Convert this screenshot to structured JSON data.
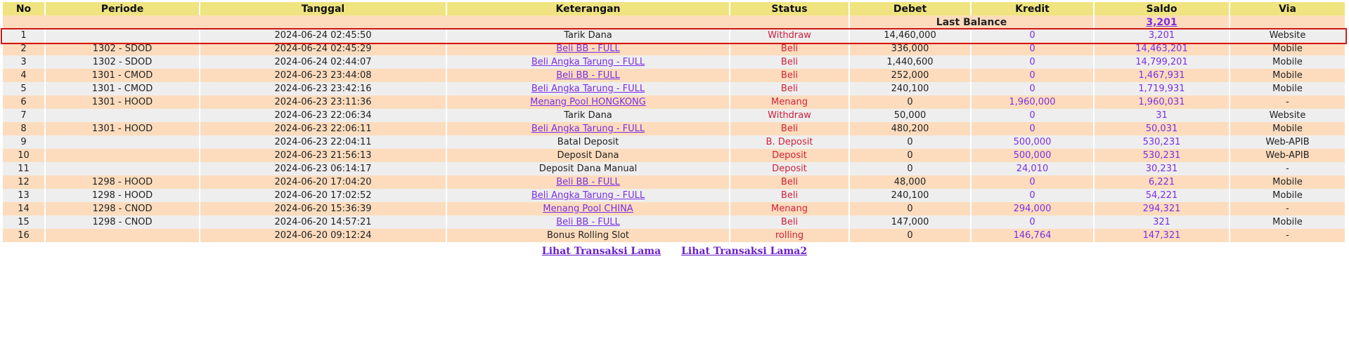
{
  "headers": [
    "No",
    "Periode",
    "Tanggal",
    "Keterangan",
    "Status",
    "Debet",
    "Kredit",
    "Saldo",
    "Via"
  ],
  "last_balance": {
    "label": "Last Balance",
    "value": "3,201"
  },
  "rows": [
    {
      "no": "1",
      "periode": "",
      "tanggal": "2024-06-24 02:45:50",
      "keterangan": "Tarik Dana",
      "link": false,
      "status": "Withdraw",
      "debet": "14,460,000",
      "kredit": "0",
      "saldo": "3,201",
      "via": "Website"
    },
    {
      "no": "2",
      "periode": "1302 - SDOD",
      "tanggal": "2024-06-24 02:45:29",
      "keterangan": "Beli BB - FULL",
      "link": true,
      "status": "Beli",
      "debet": "336,000",
      "kredit": "0",
      "saldo": "14,463,201",
      "via": "Mobile"
    },
    {
      "no": "3",
      "periode": "1302 - SDOD",
      "tanggal": "2024-06-24 02:44:07",
      "keterangan": "Beli Angka Tarung - FULL",
      "link": true,
      "status": "Beli",
      "debet": "1,440,600",
      "kredit": "0",
      "saldo": "14,799,201",
      "via": "Mobile"
    },
    {
      "no": "4",
      "periode": "1301 - CMOD",
      "tanggal": "2024-06-23 23:44:08",
      "keterangan": "Beli BB - FULL",
      "link": true,
      "status": "Beli",
      "debet": "252,000",
      "kredit": "0",
      "saldo": "1,467,931",
      "via": "Mobile"
    },
    {
      "no": "5",
      "periode": "1301 - CMOD",
      "tanggal": "2024-06-23 23:42:16",
      "keterangan": "Beli Angka Tarung - FULL",
      "link": true,
      "status": "Beli",
      "debet": "240,100",
      "kredit": "0",
      "saldo": "1,719,931",
      "via": "Mobile"
    },
    {
      "no": "6",
      "periode": "1301 - HOOD",
      "tanggal": "2024-06-23 23:11:36",
      "keterangan": "Menang Pool HONGKONG",
      "link": true,
      "status": "Menang",
      "debet": "0",
      "kredit": "1,960,000",
      "saldo": "1,960,031",
      "via": "-"
    },
    {
      "no": "7",
      "periode": "",
      "tanggal": "2024-06-23 22:06:34",
      "keterangan": "Tarik Dana",
      "link": false,
      "status": "Withdraw",
      "debet": "50,000",
      "kredit": "0",
      "saldo": "31",
      "via": "Website"
    },
    {
      "no": "8",
      "periode": "1301 - HOOD",
      "tanggal": "2024-06-23 22:06:11",
      "keterangan": "Beli Angka Tarung - FULL",
      "link": true,
      "status": "Beli",
      "debet": "480,200",
      "kredit": "0",
      "saldo": "50,031",
      "via": "Mobile"
    },
    {
      "no": "9",
      "periode": "",
      "tanggal": "2024-06-23 22:04:11",
      "keterangan": "Batal Deposit",
      "link": false,
      "status": "B. Deposit",
      "debet": "0",
      "kredit": "500,000",
      "saldo": "530,231",
      "via": "Web-APIB"
    },
    {
      "no": "10",
      "periode": "",
      "tanggal": "2024-06-23 21:56:13",
      "keterangan": "Deposit Dana",
      "link": false,
      "status": "Deposit",
      "debet": "0",
      "kredit": "500,000",
      "saldo": "530,231",
      "via": "Web-APIB"
    },
    {
      "no": "11",
      "periode": "",
      "tanggal": "2024-06-23 06:14:17",
      "keterangan": "Deposit Dana Manual",
      "link": false,
      "status": "Deposit",
      "debet": "0",
      "kredit": "24,010",
      "saldo": "30,231",
      "via": "-"
    },
    {
      "no": "12",
      "periode": "1298 - HOOD",
      "tanggal": "2024-06-20 17:04:20",
      "keterangan": "Beli BB - FULL",
      "link": true,
      "status": "Beli",
      "debet": "48,000",
      "kredit": "0",
      "saldo": "6,221",
      "via": "Mobile"
    },
    {
      "no": "13",
      "periode": "1298 - HOOD",
      "tanggal": "2024-06-20 17:02:52",
      "keterangan": "Beli Angka Tarung - FULL",
      "link": true,
      "status": "Beli",
      "debet": "240,100",
      "kredit": "0",
      "saldo": "54,221",
      "via": "Mobile"
    },
    {
      "no": "14",
      "periode": "1298 - CNOD",
      "tanggal": "2024-06-20 15:36:39",
      "keterangan": "Menang Pool CHINA",
      "link": true,
      "status": "Menang",
      "debet": "0",
      "kredit": "294,000",
      "saldo": "294,321",
      "via": "-"
    },
    {
      "no": "15",
      "periode": "1298 - CNOD",
      "tanggal": "2024-06-20 14:57:21",
      "keterangan": "Beli BB - FULL",
      "link": true,
      "status": "Beli",
      "debet": "147,000",
      "kredit": "0",
      "saldo": "321",
      "via": "Mobile"
    },
    {
      "no": "16",
      "periode": "",
      "tanggal": "2024-06-20 09:12:24",
      "keterangan": "Bonus Rolling Slot",
      "link": false,
      "status": "rolling",
      "debet": "0",
      "kredit": "146,764",
      "saldo": "147,321",
      "via": "-"
    }
  ],
  "footer_links": [
    "Lihat Transaksi Lama",
    "Lihat Transaksi Lama2"
  ],
  "colors": {
    "header": "#efe480",
    "row_odd": "#fddcbd",
    "row_even": "#eeeeee",
    "status": "#d0203a",
    "amount": "#7a2fe0",
    "highlight": "#d01818"
  }
}
